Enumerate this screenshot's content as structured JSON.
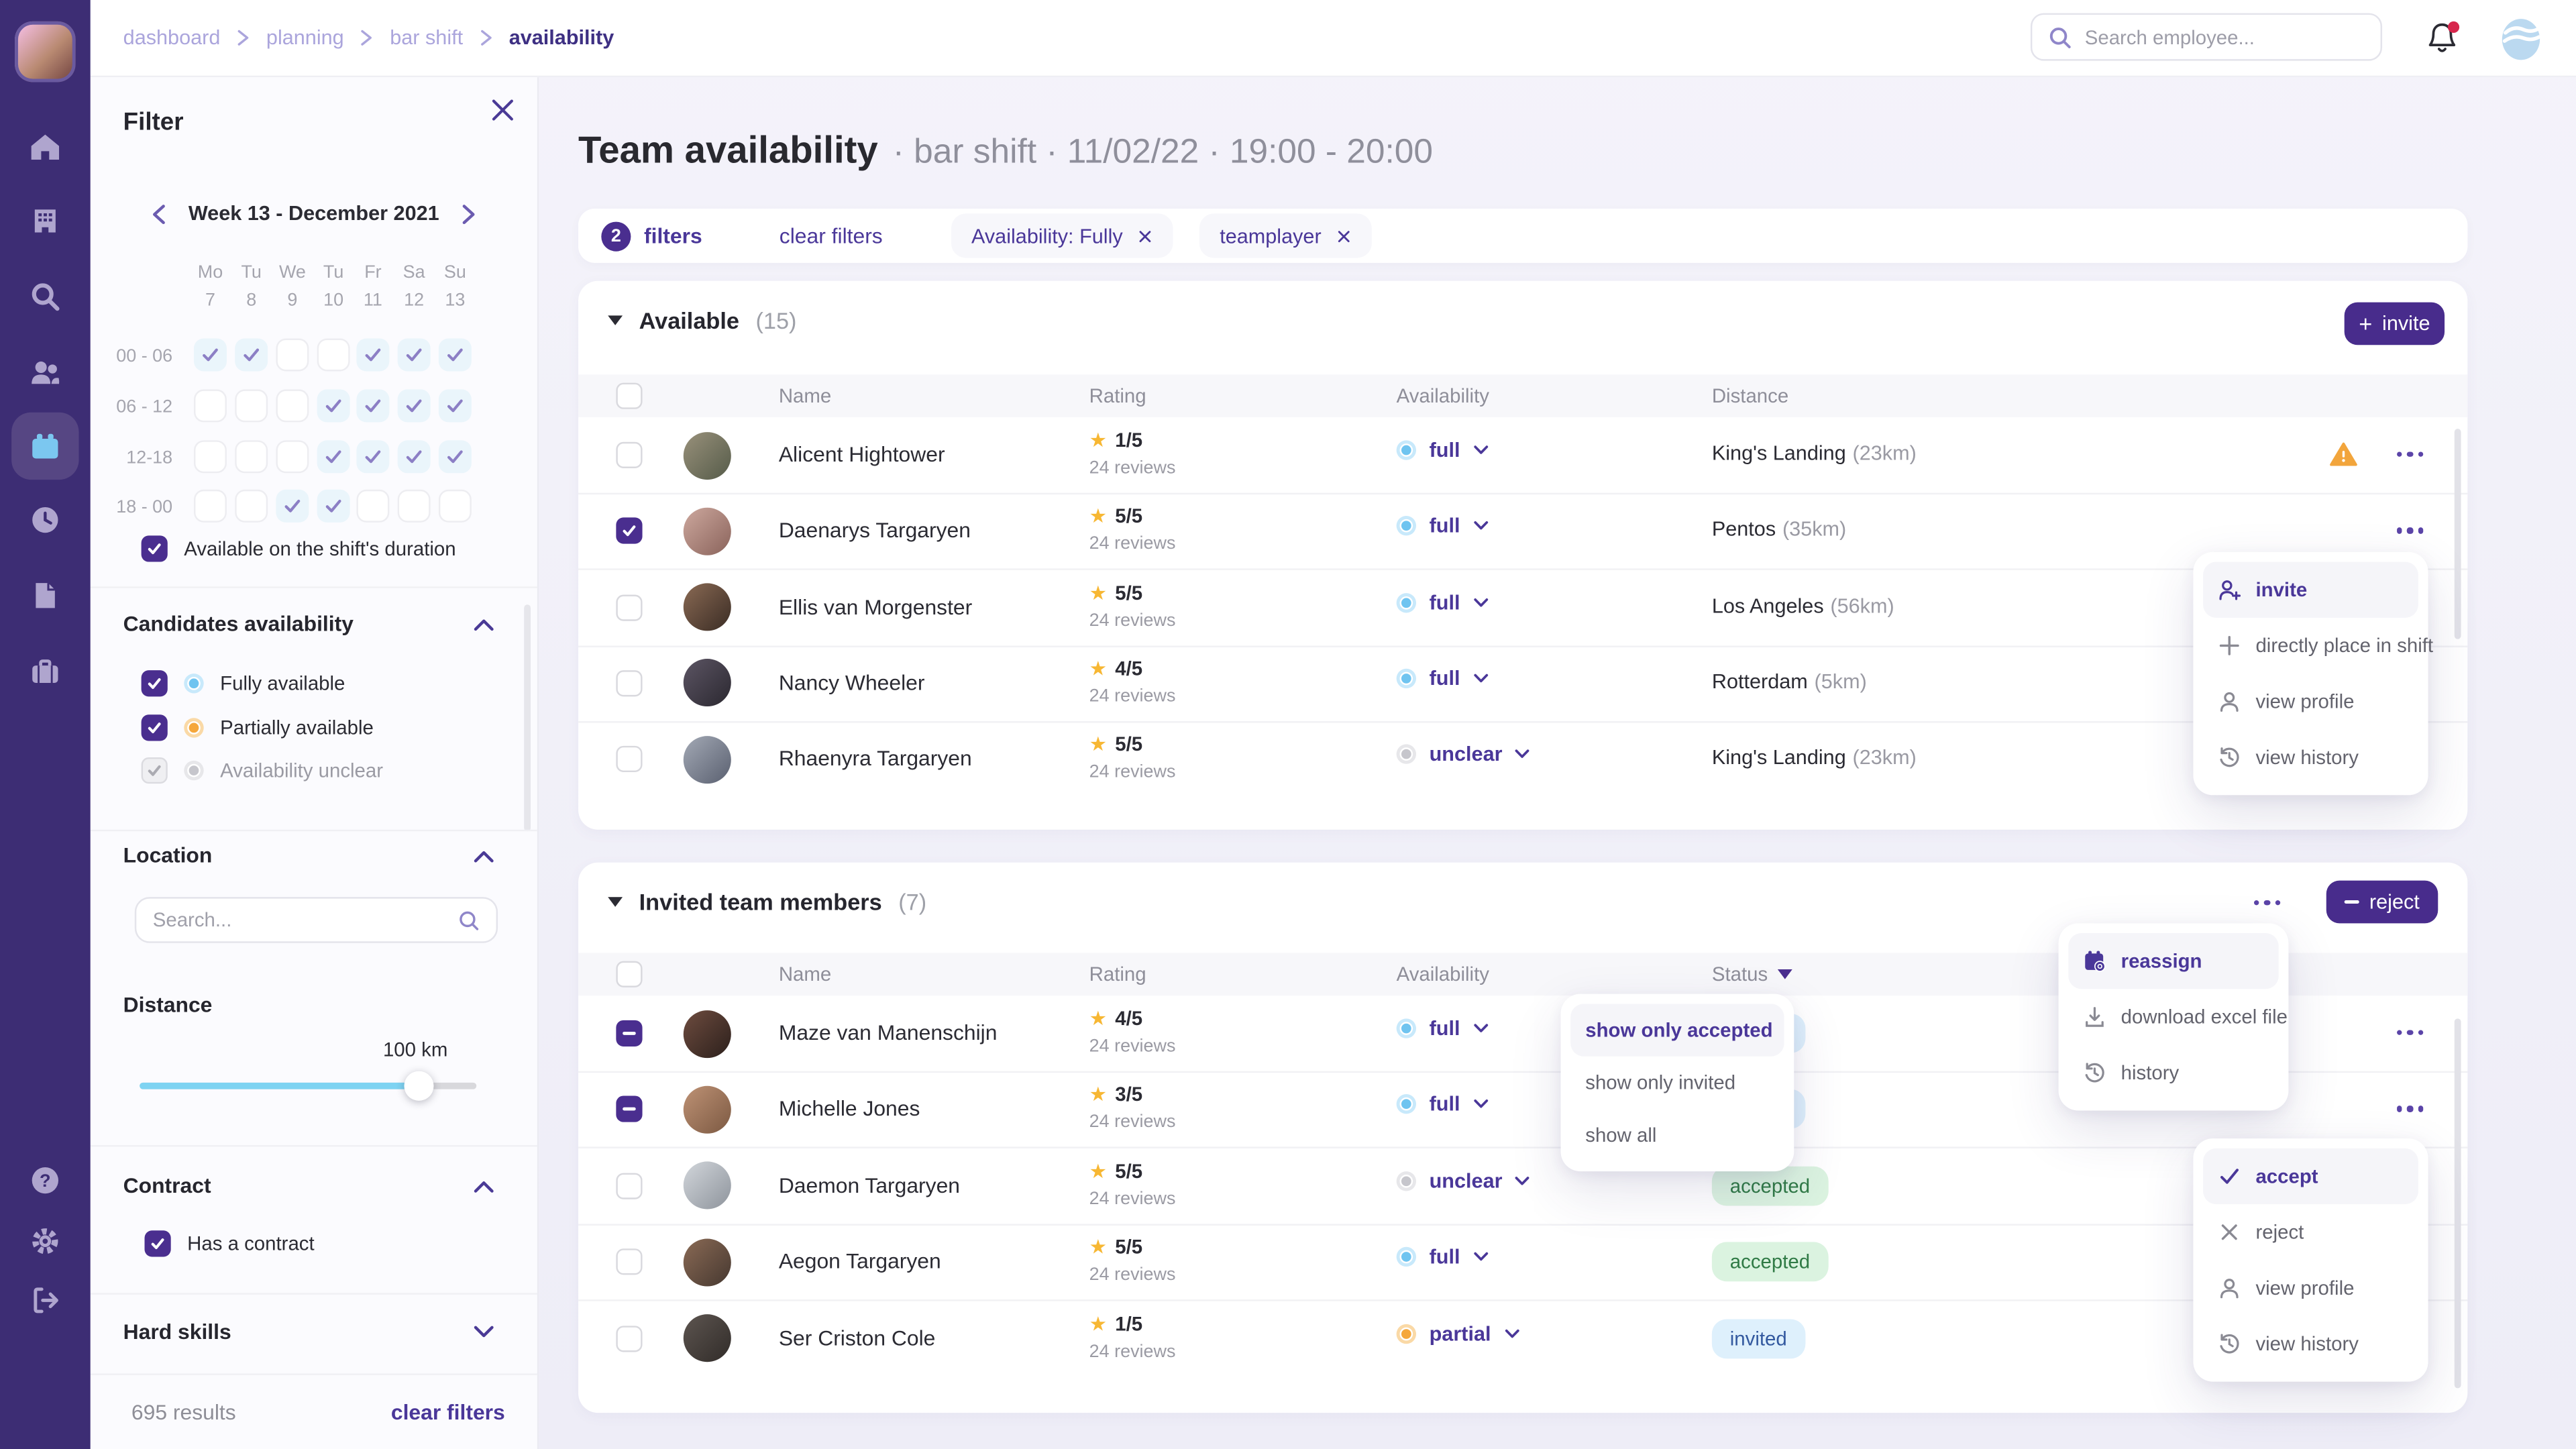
{
  "colors": {
    "sidebar": "#3D2D74",
    "primary": "#4A2E8F",
    "accent_purple_text": "#4A3799",
    "accent_blue": "#6FC4F0",
    "accent_orange": "#F5A73B",
    "danger": "#D7264C",
    "star": "#F7B733",
    "badge_green_bg": "#DBF3E0",
    "badge_green_text": "#2F7A45",
    "badge_blue_bg": "#DEF0FC",
    "badge_blue_text": "#33599F"
  },
  "topbar": {
    "breadcrumb": [
      "dashboard",
      "planning",
      "bar shift",
      "availability"
    ],
    "search_placeholder": "Search employee..."
  },
  "sidebar": {
    "items": [
      {
        "icon": "home-icon",
        "active": false
      },
      {
        "icon": "building-icon",
        "active": false
      },
      {
        "icon": "search-icon",
        "active": false
      },
      {
        "icon": "users-icon",
        "active": false
      },
      {
        "icon": "calendar-icon",
        "active": true
      },
      {
        "icon": "clock-icon",
        "active": false
      },
      {
        "icon": "document-icon",
        "active": false
      },
      {
        "icon": "briefcase-icon",
        "active": false
      }
    ],
    "footer": [
      {
        "icon": "help-icon"
      },
      {
        "icon": "gear-icon"
      },
      {
        "icon": "logout-icon"
      }
    ]
  },
  "filter_panel": {
    "title": "Filter",
    "week_label": "Week 13 - December 2021",
    "day_headers": [
      "Mo",
      "Tu",
      "We",
      "Tu",
      "Fr",
      "Sa",
      "Su"
    ],
    "dates": [
      "7",
      "8",
      "9",
      "10",
      "11",
      "12",
      "13"
    ],
    "time_rows": [
      {
        "label": "00 - 06",
        "cells": [
          1,
          1,
          0,
          0,
          1,
          1,
          1
        ]
      },
      {
        "label": "06 - 12",
        "cells": [
          0,
          0,
          0,
          1,
          1,
          1,
          1
        ]
      },
      {
        "label": "12-18",
        "cells": [
          0,
          0,
          0,
          1,
          1,
          1,
          1
        ]
      },
      {
        "label": "18 - 00",
        "cells": [
          0,
          0,
          1,
          1,
          0,
          0,
          0
        ]
      }
    ],
    "shift_duration": {
      "label": "Available on the shift's duration",
      "checked": true
    },
    "candidates_availability": {
      "title": "Candidates availability",
      "options": [
        {
          "label": "Fully available",
          "checked": true,
          "disabled": false,
          "dot": "full"
        },
        {
          "label": "Partially available",
          "checked": true,
          "disabled": false,
          "dot": "partial"
        },
        {
          "label": "Availability unclear",
          "checked": true,
          "disabled": true,
          "dot": "unclear"
        }
      ]
    },
    "location": {
      "title": "Location",
      "search_placeholder": "Search..."
    },
    "distance": {
      "title": "Distance",
      "value_label": "100 km",
      "fill_percent": 83
    },
    "contract": {
      "title": "Contract",
      "option_label": "Has a contract",
      "checked": true
    },
    "hard_skills": {
      "title": "Hard skills"
    },
    "results_label": "695 results",
    "clear_filters_label": "clear filters"
  },
  "main": {
    "title": "Team availability",
    "subtitle": "· bar shift · 11/02/22 · 19:00 - 20:00",
    "filters_bar": {
      "count": "2",
      "filters_label": "filters",
      "clear_label": "clear filters",
      "chips": [
        "Availability: Fully",
        "teamplayer"
      ]
    },
    "available": {
      "title": "Available",
      "count": "(15)",
      "invite_label": "invite",
      "columns": [
        "Name",
        "Rating",
        "Availability",
        "Distance"
      ],
      "rows": [
        {
          "name": "Alicent Hightower",
          "rating": "1/5",
          "reviews": "24 reviews",
          "availability": "full",
          "city": "King's Landing",
          "km": "(23km)",
          "warning": true,
          "checked": false,
          "avatar": [
            "#99917B",
            "#555B49"
          ]
        },
        {
          "name": "Daenarys Targaryen",
          "rating": "5/5",
          "reviews": "24 reviews",
          "availability": "full",
          "city": "Pentos",
          "km": "(35km)",
          "warning": false,
          "checked": true,
          "avatar": [
            "#CDA89E",
            "#8A635B"
          ]
        },
        {
          "name": "Ellis van Morgenster",
          "rating": "5/5",
          "reviews": "24 reviews",
          "availability": "full",
          "city": "Los Angeles",
          "km": "(56km)",
          "warning": false,
          "checked": false,
          "avatar": [
            "#8A6A54",
            "#3A2C24"
          ]
        },
        {
          "name": "Nancy Wheeler",
          "rating": "4/5",
          "reviews": "24 reviews",
          "availability": "full",
          "city": "Rotterdam",
          "km": "(5km)",
          "warning": false,
          "checked": false,
          "avatar": [
            "#5C5564",
            "#2B2830"
          ]
        },
        {
          "name": "Rhaenyra Targaryen",
          "rating": "5/5",
          "reviews": "24 reviews",
          "availability": "unclear",
          "city": "King's Landing",
          "km": "(23km)",
          "warning": false,
          "checked": false,
          "avatar": [
            "#A3A9B5",
            "#5A6070"
          ]
        }
      ]
    },
    "invited": {
      "title": "Invited team members",
      "count": "(7)",
      "reject_label": "reject",
      "columns": [
        "Name",
        "Rating",
        "Availability",
        "Status"
      ],
      "rows": [
        {
          "name": "Maze van Manenschijn",
          "rating": "4/5",
          "reviews": "24 reviews",
          "availability": "full",
          "status": "invited",
          "checked": "mixed",
          "avatar": [
            "#6E4C3F",
            "#2C201C"
          ]
        },
        {
          "name": "Michelle Jones",
          "rating": "3/5",
          "reviews": "24 reviews",
          "availability": "full",
          "status": "invited",
          "checked": "mixed",
          "avatar": [
            "#BE9275",
            "#7C5942"
          ]
        },
        {
          "name": "Daemon Targaryen",
          "rating": "5/5",
          "reviews": "24 reviews",
          "availability": "unclear",
          "status": "accepted",
          "checked": false,
          "avatar": [
            "#D2D6DB",
            "#8E949C"
          ]
        },
        {
          "name": "Aegon Targaryen",
          "rating": "5/5",
          "reviews": "24 reviews",
          "availability": "full",
          "status": "accepted",
          "checked": false,
          "avatar": [
            "#8A6A55",
            "#463830"
          ]
        },
        {
          "name": "Ser Criston Cole",
          "rating": "1/5",
          "reviews": "24 reviews",
          "availability": "partial",
          "status": "invited",
          "checked": false,
          "avatar": [
            "#5D5550",
            "#312C29"
          ]
        }
      ]
    },
    "menus": {
      "available_row_menu": [
        {
          "label": "invite",
          "icon": "user-plus-icon",
          "active": true
        },
        {
          "label": "directly place in shift",
          "icon": "plus-icon",
          "active": false
        },
        {
          "label": "view profile",
          "icon": "user-icon",
          "active": false
        },
        {
          "label": "view history",
          "icon": "history-icon",
          "active": false
        }
      ],
      "status_filter_menu": [
        {
          "label": "show only accepted",
          "active": true
        },
        {
          "label": "show only invited",
          "active": false
        },
        {
          "label": "show all",
          "active": false
        }
      ],
      "invited_bulk_menu": [
        {
          "label": "reassign",
          "icon": "calendar-edit-icon",
          "active": true
        },
        {
          "label": "download excel file",
          "icon": "download-icon",
          "active": false
        },
        {
          "label": "history",
          "icon": "history-icon",
          "active": false
        }
      ],
      "invited_row_menu": [
        {
          "label": "accept",
          "icon": "check-icon",
          "active": true
        },
        {
          "label": "reject",
          "icon": "x-icon",
          "active": false
        },
        {
          "label": "view profile",
          "icon": "user-icon",
          "active": false
        },
        {
          "label": "view history",
          "icon": "history-icon",
          "active": false
        }
      ]
    }
  }
}
